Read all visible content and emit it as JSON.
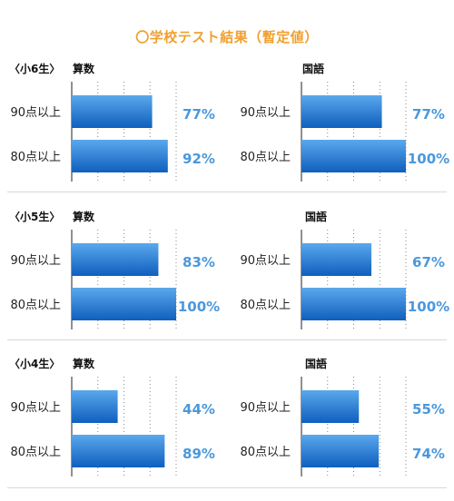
{
  "title": "〇学校テスト結果（暫定値）",
  "colors": {
    "title": "#f0a030",
    "bar_top": "#5aa8ec",
    "bar_bottom": "#0f5fbe",
    "value_text": "#4a98dc"
  },
  "chart_data": [
    {
      "type": "bar",
      "grade": "〈小6生〉",
      "subject": "算数",
      "categories": [
        "90点以上",
        "80点以上"
      ],
      "values": [
        77,
        92
      ],
      "value_labels": [
        "77%",
        "92%"
      ],
      "xlim": [
        0,
        100
      ]
    },
    {
      "type": "bar",
      "grade": "",
      "subject": "国語",
      "categories": [
        "90点以上",
        "80点以上"
      ],
      "values": [
        77,
        100
      ],
      "value_labels": [
        "77%",
        "100%"
      ],
      "xlim": [
        0,
        100
      ]
    },
    {
      "type": "bar",
      "grade": "〈小5生〉",
      "subject": "算数",
      "categories": [
        "90点以上",
        "80点以上"
      ],
      "values": [
        83,
        100
      ],
      "value_labels": [
        "83%",
        "100%"
      ],
      "xlim": [
        0,
        100
      ]
    },
    {
      "type": "bar",
      "grade": "",
      "subject": "国語",
      "categories": [
        "90点以上",
        "80点以上"
      ],
      "values": [
        67,
        100
      ],
      "value_labels": [
        "67%",
        "100%"
      ],
      "xlim": [
        0,
        100
      ]
    },
    {
      "type": "bar",
      "grade": "〈小4生〉",
      "subject": "算数",
      "categories": [
        "90点以上",
        "80点以上"
      ],
      "values": [
        44,
        89
      ],
      "value_labels": [
        "44%",
        "89%"
      ],
      "xlim": [
        0,
        100
      ]
    },
    {
      "type": "bar",
      "grade": "",
      "subject": "国語",
      "categories": [
        "90点以上",
        "80点以上"
      ],
      "values": [
        55,
        74
      ],
      "value_labels": [
        "55%",
        "74%"
      ],
      "xlim": [
        0,
        100
      ]
    }
  ]
}
